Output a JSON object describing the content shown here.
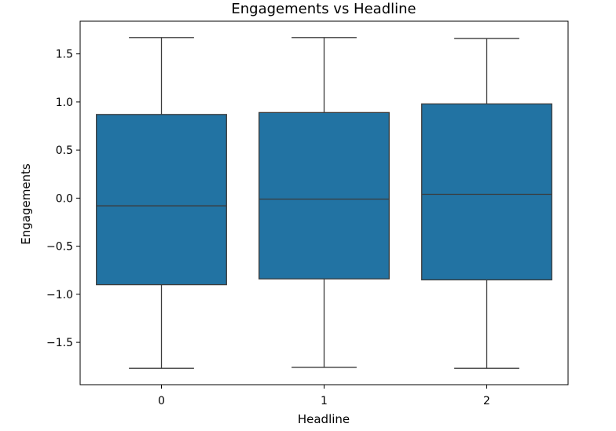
{
  "chart_data": {
    "type": "box",
    "title": "Engagements vs Headline",
    "xlabel": "Headline",
    "ylabel": "Engagements",
    "categories": [
      "0",
      "1",
      "2"
    ],
    "boxes": [
      {
        "category": "0",
        "whisker_low": -1.77,
        "q1": -0.9,
        "median": -0.08,
        "q3": 0.87,
        "whisker_high": 1.67
      },
      {
        "category": "1",
        "whisker_low": -1.76,
        "q1": -0.84,
        "median": -0.01,
        "q3": 0.89,
        "whisker_high": 1.67
      },
      {
        "category": "2",
        "whisker_low": -1.77,
        "q1": -0.85,
        "median": 0.04,
        "q3": 0.98,
        "whisker_high": 1.66
      }
    ],
    "yticks": [
      1.5,
      1.0,
      0.5,
      0.0,
      -0.5,
      -1.0,
      -1.5
    ],
    "ytick_labels": [
      "1.5",
      "1.0",
      "0.5",
      "0.0",
      "−0.5",
      "−1.0",
      "−1.5"
    ],
    "ylim": [
      -1.94,
      1.84
    ],
    "grid": false,
    "colors": {
      "box_fill": "#2273a3",
      "line": "#3b3b3b",
      "axis": "#000000"
    }
  }
}
